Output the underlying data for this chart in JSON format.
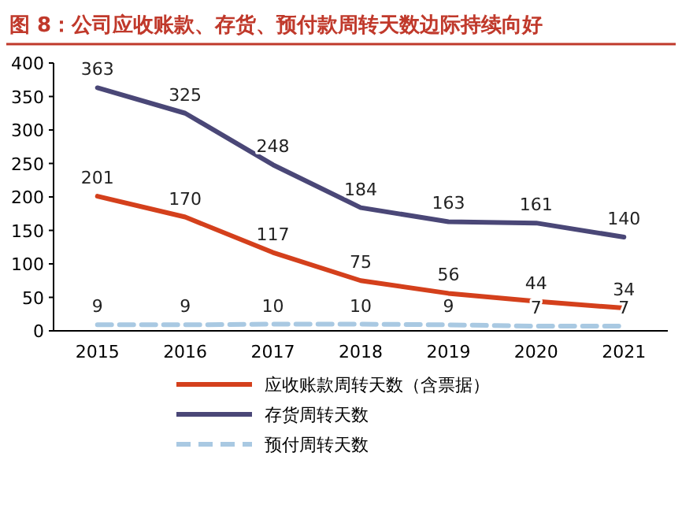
{
  "chart_data": {
    "type": "line",
    "title": "图 8：公司应收账款、存货、预付款周转天数边际持续向好",
    "categories": [
      "2015",
      "2016",
      "2017",
      "2018",
      "2019",
      "2020",
      "2021"
    ],
    "series": [
      {
        "name": "应收账款周转天数（含票据）",
        "color": "#d4401c",
        "values": [
          201,
          170,
          117,
          75,
          56,
          44,
          34
        ]
      },
      {
        "name": "存货周转天数",
        "color": "#4a4777",
        "values": [
          363,
          325,
          248,
          184,
          163,
          161,
          140
        ]
      },
      {
        "name": "预付周转天数",
        "color": "#a9c9e2",
        "line_style": "dashed",
        "values": [
          9,
          9,
          10,
          10,
          9,
          7,
          7
        ]
      }
    ],
    "ylim": [
      0,
      400
    ],
    "yticks": [
      0,
      50,
      100,
      150,
      200,
      250,
      300,
      350,
      400
    ],
    "data_labels": true,
    "legend": "bottom"
  }
}
